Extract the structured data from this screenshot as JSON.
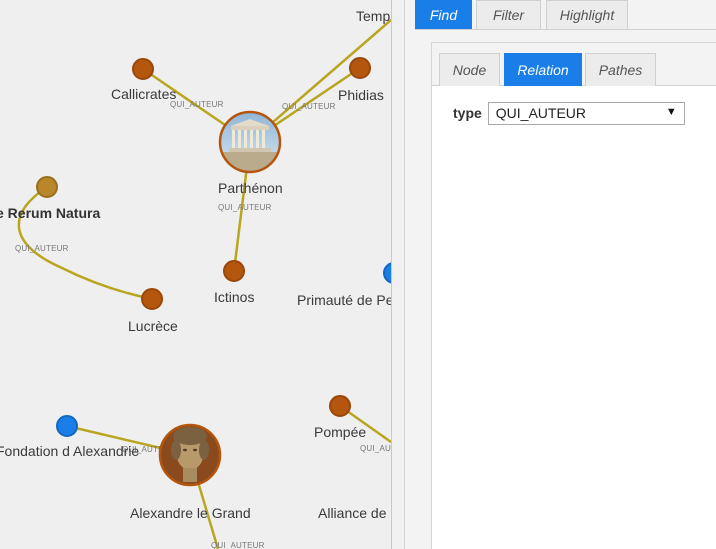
{
  "graph": {
    "nodes": [
      {
        "id": "temple",
        "label": "Temp",
        "color": "#b5560e"
      },
      {
        "id": "callicrates",
        "label": "Callicrates",
        "color": "#b5560e"
      },
      {
        "id": "phidias",
        "label": "Phidias",
        "color": "#b5560e"
      },
      {
        "id": "parthenon",
        "label": "Parthénon",
        "image": "parthenon-photo"
      },
      {
        "id": "rerum",
        "label": "e Rerum Natura",
        "color": "#b9862a"
      },
      {
        "id": "ictinos",
        "label": "Ictinos",
        "color": "#b5560e"
      },
      {
        "id": "lucrece",
        "label": "Lucrèce",
        "color": "#b5560e"
      },
      {
        "id": "primaute",
        "label": "Primauté de Pe",
        "color": "#1a7ee8"
      },
      {
        "id": "fondation",
        "label": "Fondation d Alexandrie",
        "color": "#1a7ee8"
      },
      {
        "id": "alexandre",
        "label": "Alexandre le Grand",
        "image": "alexander-bust-photo"
      },
      {
        "id": "pompee",
        "label": "Pompée",
        "color": "#b5560e"
      },
      {
        "id": "alliance",
        "label": "Alliance de"
      }
    ],
    "edge_labels": {
      "callicrates": "QUI_AUTEUR",
      "phidias": "QUI_AUTEUR",
      "ictinos": "QUI_AUTEUR",
      "lucrece": "QUI_AUTEUR",
      "fondation": "QUI_AUTEUR",
      "pompee": "QUI_AUTEUR",
      "alexandre_down": "QUI_AUTEUR"
    },
    "edge_color": "#b8a520"
  },
  "panel": {
    "top_tabs": [
      {
        "label": "Find",
        "active": true
      },
      {
        "label": "Filter",
        "active": false
      },
      {
        "label": "Highlight",
        "active": false
      }
    ],
    "sub_tabs": [
      {
        "label": "Node",
        "active": false
      },
      {
        "label": "Relation",
        "active": true
      },
      {
        "label": "Pathes",
        "active": false
      }
    ],
    "type_label": "type",
    "type_value": "QUI_AUTEUR",
    "select_arrow": "▼"
  },
  "colors": {
    "accent": "#1a7ee8",
    "edge": "#b8a520",
    "person_node": "#b5560e",
    "work_node": "#b9862a",
    "place_node": "#1a7ee8"
  }
}
